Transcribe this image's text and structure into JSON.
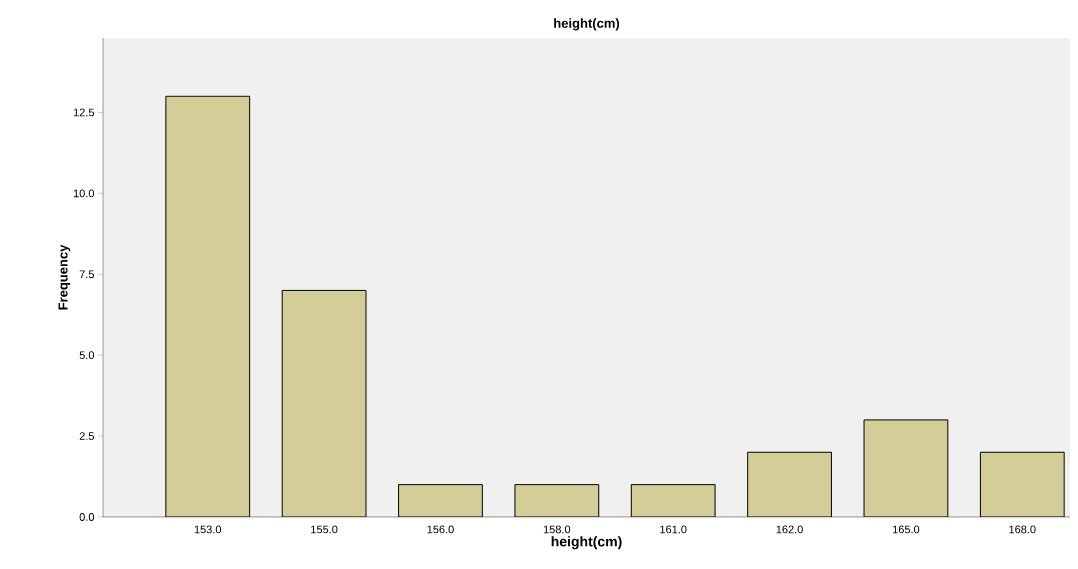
{
  "chart_data": {
    "type": "bar",
    "title": "height(cm)",
    "xlabel": "height(cm)",
    "ylabel": "Frequency",
    "categories": [
      "153.0",
      "155.0",
      "156.0",
      "158.0",
      "161.0",
      "162.0",
      "165.0",
      "168.0"
    ],
    "values": [
      13,
      7,
      1,
      1,
      1,
      2,
      3,
      2
    ],
    "color": "#d3ce97",
    "ylim": [
      0,
      14.8
    ],
    "yticks": [
      {
        "value": 0,
        "label": "0.0"
      },
      {
        "value": 2.5,
        "label": "2.5"
      },
      {
        "value": 5,
        "label": "5.0"
      },
      {
        "value": 7.5,
        "label": "7.5"
      },
      {
        "value": 10,
        "label": "10.0"
      },
      {
        "value": 12.5,
        "label": "12.5"
      }
    ],
    "grid": false
  }
}
